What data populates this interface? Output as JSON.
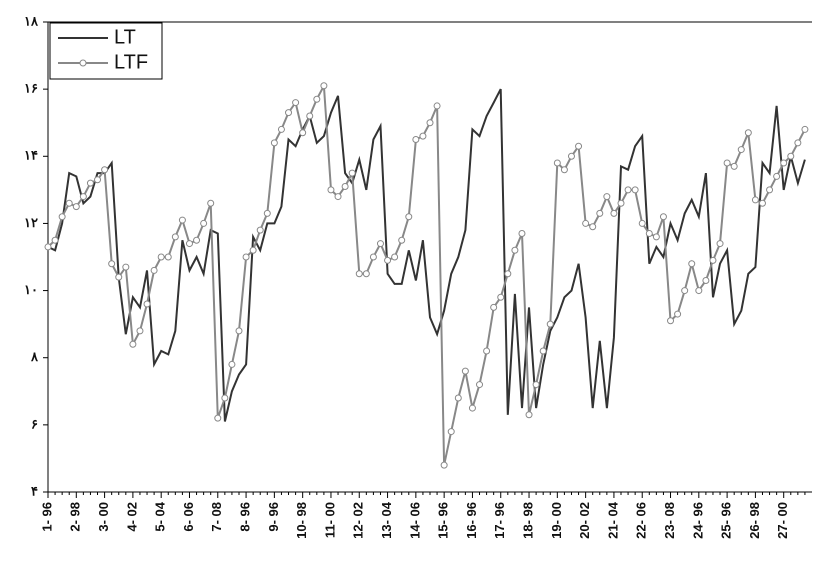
{
  "chart_data": {
    "type": "line",
    "categories": [
      "1- 96",
      null,
      null,
      null,
      "2- 98",
      null,
      null,
      null,
      "3- 00",
      null,
      null,
      null,
      "4- 02",
      null,
      null,
      null,
      "5- 04",
      null,
      null,
      null,
      "6- 06",
      null,
      null,
      null,
      "7- 08",
      null,
      null,
      null,
      "8- 96",
      null,
      null,
      null,
      "9- 96",
      null,
      null,
      null,
      "10- 98",
      null,
      null,
      null,
      "11- 00",
      null,
      null,
      null,
      "12- 02",
      null,
      null,
      null,
      "13- 04",
      null,
      null,
      null,
      "14- 06",
      null,
      null,
      null,
      "15- 96",
      null,
      null,
      null,
      "16- 96",
      null,
      null,
      null,
      "17- 96",
      null,
      null,
      null,
      "18- 98",
      null,
      null,
      null,
      "19- 00",
      null,
      null,
      null,
      "20- 02",
      null,
      null,
      null,
      "21- 04",
      null,
      null,
      null,
      "22- 06",
      null,
      null,
      null,
      "23- 08",
      null,
      null,
      null,
      "24- 96",
      null,
      null,
      null,
      "25- 96",
      null,
      null,
      null,
      "26- 98",
      null,
      null,
      null,
      "27- 00",
      null,
      null,
      null
    ],
    "series": [
      {
        "name": "LT",
        "color": "#333333",
        "marker": false,
        "values": [
          11.3,
          11.2,
          12.0,
          13.5,
          13.4,
          12.6,
          12.8,
          13.5,
          13.5,
          13.8,
          10.4,
          8.7,
          9.8,
          9.5,
          10.6,
          7.8,
          8.2,
          8.1,
          8.8,
          11.5,
          10.6,
          11.0,
          10.5,
          11.8,
          11.7,
          6.1,
          7.0,
          7.5,
          7.8,
          11.6,
          11.2,
          12.0,
          12.0,
          12.5,
          14.5,
          14.3,
          14.8,
          15.2,
          14.4,
          14.6,
          15.3,
          15.8,
          13.5,
          13.2,
          13.9,
          13.0,
          14.5,
          14.9,
          10.5,
          10.2,
          10.2,
          11.2,
          10.3,
          11.5,
          9.2,
          8.7,
          9.4,
          10.5,
          11.0,
          11.8,
          14.8,
          14.6,
          15.2,
          15.6,
          16.0,
          6.3,
          9.9,
          6.5,
          9.5,
          6.5,
          7.8,
          8.8,
          9.2,
          9.8,
          10.0,
          10.8,
          9.2,
          6.5,
          8.5,
          6.5,
          8.6,
          13.7,
          13.6,
          14.3,
          14.6,
          10.8,
          11.3,
          11.0,
          12.0,
          11.5,
          12.3,
          12.7,
          12.2,
          13.5,
          9.8,
          10.8,
          11.2,
          9.0,
          9.4,
          10.5,
          10.7,
          13.8,
          13.5,
          15.5,
          13.0,
          14.0,
          13.2,
          13.9
        ]
      },
      {
        "name": "LTF",
        "color": "#888888",
        "marker": true,
        "values": [
          11.3,
          11.5,
          12.2,
          12.6,
          12.5,
          12.8,
          13.2,
          13.3,
          13.6,
          10.8,
          10.4,
          10.7,
          8.4,
          8.8,
          9.6,
          10.6,
          11.0,
          11.0,
          11.6,
          12.1,
          11.4,
          11.5,
          12.0,
          12.6,
          6.2,
          6.8,
          7.8,
          8.8,
          11.0,
          11.2,
          11.8,
          12.3,
          14.4,
          14.8,
          15.3,
          15.6,
          14.7,
          15.2,
          15.7,
          16.1,
          13.0,
          12.8,
          13.1,
          13.5,
          10.5,
          10.5,
          11.0,
          11.4,
          10.9,
          11.0,
          11.5,
          12.2,
          14.5,
          14.6,
          15.0,
          15.5,
          4.8,
          5.8,
          6.8,
          7.6,
          6.5,
          7.2,
          8.2,
          9.5,
          9.8,
          10.5,
          11.2,
          11.7,
          6.3,
          7.2,
          8.2,
          9.0,
          13.8,
          13.6,
          14.0,
          14.3,
          12.0,
          11.9,
          12.3,
          12.8,
          12.3,
          12.6,
          13.0,
          13.0,
          12.0,
          11.7,
          11.6,
          12.2,
          9.1,
          9.3,
          10.0,
          10.8,
          10.0,
          10.3,
          10.9,
          11.4,
          13.8,
          13.7,
          14.2,
          14.7,
          12.7,
          12.6,
          13.0,
          13.4,
          13.8,
          14.0,
          14.4,
          14.8
        ]
      }
    ],
    "ylim": [
      4,
      18
    ],
    "yticks": [
      {
        "value": 4,
        "label": "۴"
      },
      {
        "value": 6,
        "label": "۶"
      },
      {
        "value": 8,
        "label": "۸"
      },
      {
        "value": 10,
        "label": "۱۰"
      },
      {
        "value": 12,
        "label": "۱۲"
      },
      {
        "value": 14,
        "label": "۱۴"
      },
      {
        "value": 16,
        "label": "۱۶"
      },
      {
        "value": 18,
        "label": "۱۸"
      }
    ],
    "legend": "top-left"
  }
}
